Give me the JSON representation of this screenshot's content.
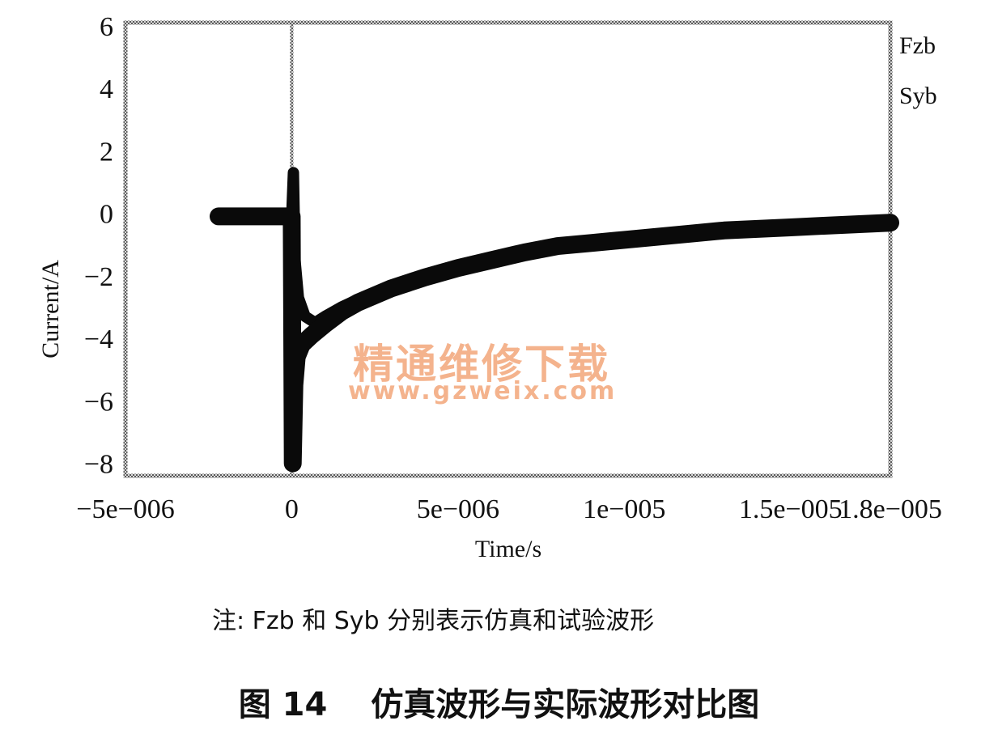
{
  "chart_data": {
    "type": "line",
    "title": "",
    "xlabel": "Time/s",
    "ylabel": "Current/A",
    "xlim": [
      -5e-06,
      1.8e-05
    ],
    "ylim": [
      -8.4,
      6.1
    ],
    "x_tick_values": [
      -5e-06,
      0,
      5e-06,
      1e-05,
      1.5e-05,
      1.8e-05
    ],
    "x_tick_labels": [
      "−5e−006",
      "0",
      "5e−006",
      "1e−005",
      "1.5e−005",
      "1.8e−005"
    ],
    "y_tick_values": [
      6,
      4,
      2,
      0,
      -2,
      -4,
      -6,
      -8
    ],
    "y_tick_labels": [
      "6",
      "4",
      "2",
      "0",
      "−2",
      "−4",
      "−6",
      "−8"
    ],
    "grid": false,
    "legend_position": "top-right",
    "series": [
      {
        "name": "Fzb",
        "x": [
          -2.2e-06,
          -1e-06,
          -1e-07,
          0,
          5e-08,
          1e-07,
          2e-07,
          4e-07,
          7e-07,
          1e-06,
          1.5e-06,
          2e-06,
          3e-06,
          4e-06,
          5e-06,
          6e-06,
          7e-06,
          8e-06,
          9e-06,
          1e-05,
          1.1e-05,
          1.2e-05,
          1.3e-05,
          1.4e-05,
          1.5e-05,
          1.6e-05,
          1.7e-05,
          1.8e-05
        ],
        "y": [
          -0.1,
          -0.1,
          -0.1,
          -0.1,
          1.3,
          -1.5,
          -2.7,
          -3.3,
          -3.5,
          -3.3,
          -3.0,
          -2.75,
          -2.3,
          -1.95,
          -1.65,
          -1.4,
          -1.2,
          -1.0,
          -0.9,
          -0.8,
          -0.7,
          -0.6,
          -0.5,
          -0.45,
          -0.4,
          -0.35,
          -0.3,
          -0.25
        ]
      },
      {
        "name": "Syb",
        "x": [
          -2.2e-06,
          -1e-06,
          -1e-07,
          0,
          3e-08,
          8e-08,
          1.5e-07,
          3e-07,
          6e-07,
          1e-06,
          1.5e-06,
          2e-06,
          3e-06,
          4e-06,
          5e-06,
          6e-06,
          7e-06,
          8e-06,
          9e-06,
          1e-05,
          1.1e-05,
          1.2e-05,
          1.3e-05,
          1.4e-05,
          1.5e-05,
          1.6e-05,
          1.7e-05,
          1.8e-05
        ],
        "y": [
          -0.1,
          -0.1,
          -0.1,
          -0.1,
          -8.0,
          -5.5,
          -4.6,
          -4.2,
          -3.9,
          -3.55,
          -3.15,
          -2.85,
          -2.4,
          -2.05,
          -1.75,
          -1.5,
          -1.25,
          -1.05,
          -0.95,
          -0.85,
          -0.75,
          -0.65,
          -0.55,
          -0.5,
          -0.45,
          -0.4,
          -0.35,
          -0.3
        ]
      }
    ]
  },
  "note": "注: Fzb 和 Syb 分别表示仿真和试验波形",
  "caption": "图 14　 仿真波形与实际波形对比图",
  "watermark": {
    "text": "精通维修下载",
    "url": "www.gzweix.com"
  }
}
